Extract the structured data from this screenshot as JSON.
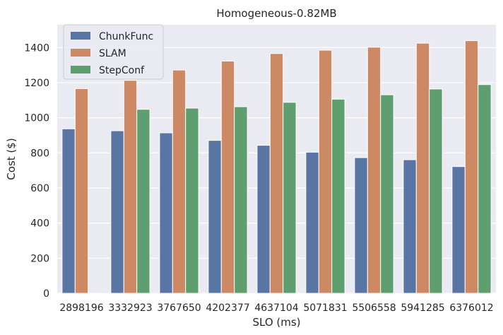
{
  "chart_data": {
    "type": "bar",
    "title": "Homogeneous-0.82MB",
    "xlabel": "SLO (ms)",
    "ylabel": "Cost ($)",
    "ylim": [
      0,
      1530
    ],
    "yticks": [
      0,
      200,
      400,
      600,
      800,
      1000,
      1200,
      1400
    ],
    "grid": true,
    "legend_position": "top-left",
    "categories": [
      "2898196",
      "3332923",
      "3767650",
      "4202377",
      "4637104",
      "5071831",
      "5506558",
      "5941285",
      "6376012"
    ],
    "series": [
      {
        "name": "ChunkFunc",
        "color": "#5875a4",
        "values": [
          937,
          926,
          914,
          871,
          843,
          804,
          773,
          761,
          722
        ]
      },
      {
        "name": "SLAM",
        "color": "#cc8963",
        "values": [
          1166,
          1213,
          1272,
          1323,
          1366,
          1385,
          1402,
          1425,
          1439
        ]
      },
      {
        "name": "StepConf",
        "color": "#5f9e6e",
        "values": [
          null,
          1048,
          1055,
          1063,
          1088,
          1106,
          1131,
          1164,
          1189
        ]
      }
    ],
    "background_color": "#eaeaf2",
    "grid_color": "#ffffff"
  }
}
